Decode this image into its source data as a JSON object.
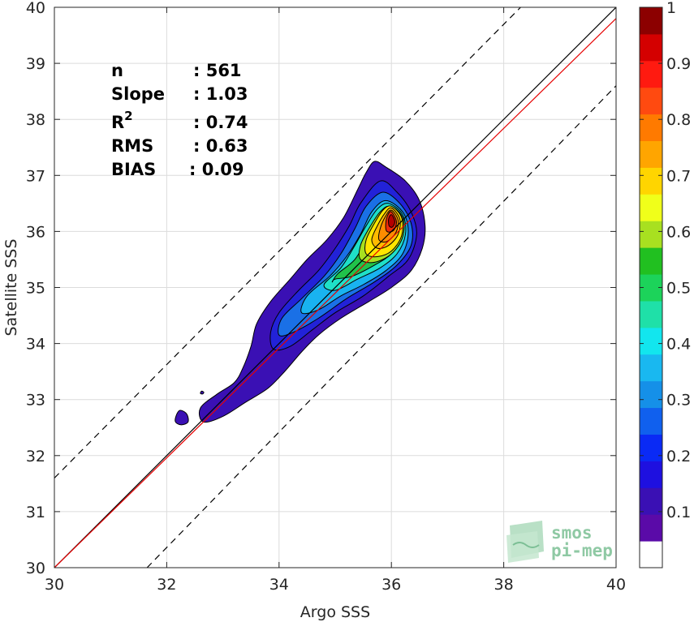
{
  "chart_data": {
    "type": "contour-scatter",
    "xlabel": "Argo SSS",
    "ylabel": "Satellite SSS",
    "xlim": [
      30,
      40
    ],
    "ylim": [
      30,
      40
    ],
    "xticks": [
      "30",
      "32",
      "34",
      "36",
      "38",
      "40"
    ],
    "yticks": [
      "30",
      "31",
      "32",
      "33",
      "34",
      "35",
      "36",
      "37",
      "38",
      "39",
      "40"
    ],
    "grid": true,
    "stats": [
      {
        "label": "n",
        "value": ": 561"
      },
      {
        "label": "Slope",
        "value": ": 1.03"
      },
      {
        "label": "R",
        "sup": "2",
        "value": ": 0.74"
      },
      {
        "label": "RMS",
        "value": ": 0.63"
      },
      {
        "label": "BIAS",
        "value": ": 0.09"
      }
    ],
    "reference_lines": [
      {
        "name": "1:1",
        "color": "#000000",
        "style": "solid",
        "x": [
          30,
          40
        ],
        "y": [
          30,
          40
        ]
      },
      {
        "name": "regression",
        "color": "#e60000",
        "style": "solid",
        "x": [
          30,
          40
        ],
        "y": [
          30,
          39.8
        ]
      },
      {
        "name": "upper",
        "color": "#000000",
        "style": "dashed",
        "x": [
          30,
          38.3
        ],
        "y": [
          31.6,
          40
        ]
      },
      {
        "name": "lower",
        "color": "#000000",
        "style": "dashed",
        "x": [
          31.65,
          40
        ],
        "y": [
          30,
          38.6
        ]
      }
    ],
    "density_levels": [
      {
        "level": 0.05,
        "color": "#3a10b4",
        "points": [
          [
            35.7,
            37.25
          ],
          [
            35.9,
            37.15
          ],
          [
            36.25,
            36.9
          ],
          [
            36.5,
            36.55
          ],
          [
            36.6,
            36.1
          ],
          [
            36.55,
            35.7
          ],
          [
            36.35,
            35.3
          ],
          [
            36.0,
            35.0
          ],
          [
            35.6,
            34.75
          ],
          [
            35.1,
            34.45
          ],
          [
            34.7,
            34.15
          ],
          [
            34.4,
            33.85
          ],
          [
            34.1,
            33.5
          ],
          [
            33.8,
            33.2
          ],
          [
            33.4,
            32.95
          ],
          [
            33.0,
            32.7
          ],
          [
            32.65,
            32.6
          ],
          [
            32.6,
            32.85
          ],
          [
            32.9,
            33.1
          ],
          [
            33.2,
            33.3
          ],
          [
            33.35,
            33.55
          ],
          [
            33.5,
            33.95
          ],
          [
            33.6,
            34.35
          ],
          [
            33.85,
            34.75
          ],
          [
            34.2,
            35.15
          ],
          [
            34.5,
            35.5
          ],
          [
            34.85,
            35.85
          ],
          [
            35.15,
            36.25
          ],
          [
            35.4,
            36.75
          ],
          [
            35.55,
            37.05
          ]
        ]
      },
      {
        "level": 0.1,
        "color": "#2222d8",
        "points": [
          [
            35.8,
            36.9
          ],
          [
            36.1,
            36.7
          ],
          [
            36.35,
            36.35
          ],
          [
            36.45,
            35.95
          ],
          [
            36.3,
            35.5
          ],
          [
            35.95,
            35.2
          ],
          [
            35.5,
            34.85
          ],
          [
            35.0,
            34.55
          ],
          [
            34.6,
            34.25
          ],
          [
            34.2,
            33.95
          ],
          [
            33.9,
            33.9
          ],
          [
            33.85,
            34.2
          ],
          [
            34.0,
            34.55
          ],
          [
            34.35,
            34.95
          ],
          [
            34.7,
            35.3
          ],
          [
            35.0,
            35.7
          ],
          [
            35.25,
            36.1
          ],
          [
            35.45,
            36.5
          ]
        ]
      },
      {
        "level": 0.2,
        "color": "#1a70e6",
        "points": [
          [
            35.85,
            36.7
          ],
          [
            36.15,
            36.5
          ],
          [
            36.35,
            36.15
          ],
          [
            36.35,
            35.75
          ],
          [
            36.1,
            35.4
          ],
          [
            35.7,
            35.1
          ],
          [
            35.2,
            34.8
          ],
          [
            34.7,
            34.45
          ],
          [
            34.25,
            34.2
          ],
          [
            34.0,
            34.15
          ],
          [
            34.05,
            34.45
          ],
          [
            34.4,
            34.8
          ],
          [
            34.8,
            35.2
          ],
          [
            35.1,
            35.6
          ],
          [
            35.35,
            36.05
          ],
          [
            35.55,
            36.45
          ]
        ]
      },
      {
        "level": 0.3,
        "color": "#19b3f0",
        "points": [
          [
            35.9,
            36.55
          ],
          [
            36.2,
            36.35
          ],
          [
            36.3,
            36.0
          ],
          [
            36.2,
            35.6
          ],
          [
            35.9,
            35.3
          ],
          [
            35.5,
            35.05
          ],
          [
            35.1,
            34.85
          ],
          [
            34.7,
            34.6
          ],
          [
            34.4,
            34.55
          ],
          [
            34.5,
            34.85
          ],
          [
            34.9,
            35.2
          ],
          [
            35.2,
            35.55
          ],
          [
            35.45,
            35.95
          ],
          [
            35.65,
            36.35
          ]
        ]
      },
      {
        "level": 0.4,
        "color": "#1fe0c8",
        "points": [
          [
            35.95,
            36.5
          ],
          [
            36.2,
            36.3
          ],
          [
            36.25,
            35.95
          ],
          [
            36.1,
            35.6
          ],
          [
            35.8,
            35.35
          ],
          [
            35.4,
            35.15
          ],
          [
            35.0,
            34.95
          ],
          [
            34.8,
            35.05
          ],
          [
            35.1,
            35.35
          ],
          [
            35.35,
            35.75
          ],
          [
            35.55,
            36.1
          ],
          [
            35.75,
            36.4
          ]
        ]
      },
      {
        "level": 0.5,
        "color": "#21c24a",
        "points": [
          [
            35.97,
            36.45
          ],
          [
            36.2,
            36.25
          ],
          [
            36.2,
            35.9
          ],
          [
            36.0,
            35.6
          ],
          [
            35.7,
            35.4
          ],
          [
            35.3,
            35.2
          ],
          [
            35.0,
            35.15
          ],
          [
            34.95,
            35.1
          ],
          [
            35.05,
            35.25
          ],
          [
            35.35,
            35.5
          ],
          [
            35.55,
            35.85
          ],
          [
            35.75,
            36.25
          ]
        ]
      },
      {
        "level": 0.6,
        "color": "#a8e020",
        "points": [
          [
            35.98,
            36.45
          ],
          [
            36.2,
            36.25
          ],
          [
            36.2,
            35.9
          ],
          [
            36.0,
            35.6
          ],
          [
            35.7,
            35.45
          ],
          [
            35.45,
            35.5
          ],
          [
            35.45,
            35.75
          ],
          [
            35.6,
            36.05
          ],
          [
            35.8,
            36.35
          ]
        ]
      },
      {
        "level": 0.7,
        "color": "#ffe600",
        "points": [
          [
            36.0,
            36.45
          ],
          [
            36.18,
            36.25
          ],
          [
            36.18,
            35.92
          ],
          [
            36.0,
            35.65
          ],
          [
            35.75,
            35.55
          ],
          [
            35.55,
            35.6
          ],
          [
            35.55,
            35.85
          ],
          [
            35.7,
            36.15
          ],
          [
            35.85,
            36.38
          ]
        ]
      },
      {
        "level": 0.75,
        "color": "#ffbb00",
        "points": [
          [
            36.0,
            36.42
          ],
          [
            36.15,
            36.22
          ],
          [
            36.12,
            35.95
          ],
          [
            35.95,
            35.75
          ],
          [
            35.75,
            35.7
          ],
          [
            35.65,
            35.85
          ],
          [
            35.75,
            36.1
          ],
          [
            35.88,
            36.32
          ]
        ]
      },
      {
        "level": 0.8,
        "color": "#ff8c00",
        "points": [
          [
            36.0,
            36.38
          ],
          [
            36.12,
            36.2
          ],
          [
            36.08,
            35.98
          ],
          [
            35.92,
            35.82
          ],
          [
            35.78,
            35.85
          ],
          [
            35.8,
            36.05
          ],
          [
            35.9,
            36.28
          ]
        ]
      },
      {
        "level": 0.9,
        "color": "#ee2a0a",
        "points": [
          [
            36.0,
            36.35
          ],
          [
            36.09,
            36.18
          ],
          [
            36.04,
            36.02
          ],
          [
            35.92,
            36.0
          ],
          [
            35.9,
            36.15
          ],
          [
            35.94,
            36.3
          ]
        ]
      },
      {
        "level": 1.0,
        "color": "#b40000",
        "points": [
          [
            36.0,
            36.3
          ],
          [
            36.06,
            36.18
          ],
          [
            36.02,
            36.08
          ],
          [
            35.96,
            36.1
          ],
          [
            35.95,
            36.22
          ]
        ]
      }
    ],
    "islands": [
      {
        "color": "#3a10b4",
        "points": [
          [
            32.22,
            32.8
          ],
          [
            32.35,
            32.75
          ],
          [
            32.38,
            32.6
          ],
          [
            32.25,
            32.55
          ],
          [
            32.15,
            32.62
          ]
        ]
      },
      {
        "color": "#3a10b4",
        "points": [
          [
            32.62,
            33.15
          ],
          [
            32.66,
            33.13
          ],
          [
            32.64,
            33.1
          ],
          [
            32.6,
            33.11
          ]
        ]
      }
    ],
    "colorbar": {
      "ticks": [
        "0.1",
        "0.2",
        "0.3",
        "0.4",
        "0.5",
        "0.6",
        "0.7",
        "0.8",
        "0.9",
        "1"
      ],
      "min": 0.0,
      "max": 1.0,
      "colors": [
        "#ffffff",
        "#5a0aa8",
        "#3a10b4",
        "#1e10e0",
        "#0a2af5",
        "#1060ee",
        "#1590e8",
        "#19b8f0",
        "#12e6ee",
        "#1fe0a8",
        "#1cd35a",
        "#21c020",
        "#a8e020",
        "#f0ff1a",
        "#ffd500",
        "#ffa500",
        "#ff7a00",
        "#ff4a10",
        "#ff1a10",
        "#d40000",
        "#8c0000"
      ]
    },
    "watermark": [
      "smos",
      "pi-mep"
    ]
  }
}
